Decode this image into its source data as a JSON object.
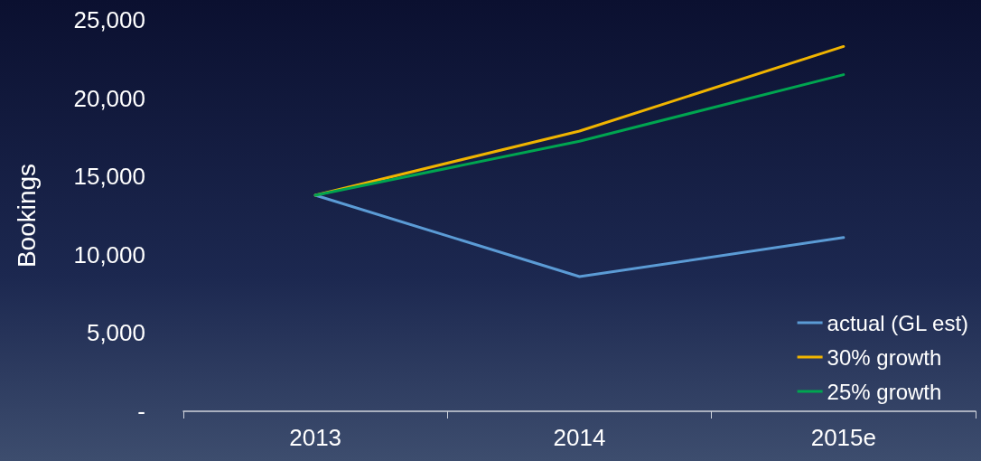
{
  "chart_data": {
    "type": "line",
    "ylabel": "Bookings",
    "categories": [
      "2013",
      "2014",
      "2015e"
    ],
    "series": [
      {
        "name": "actual (GL est)",
        "color": "#5b9bd5",
        "values": [
          13800,
          8600,
          11100
        ]
      },
      {
        "name": "30% growth",
        "color": "#f0b400",
        "values": [
          13800,
          17900,
          23300
        ]
      },
      {
        "name": "25% growth",
        "color": "#00a550",
        "values": [
          13800,
          17250,
          21500
        ]
      }
    ],
    "ylim": [
      0,
      25000
    ],
    "yticks": [
      {
        "value": 0,
        "label": "-"
      },
      {
        "value": 5000,
        "label": "5,000"
      },
      {
        "value": 10000,
        "label": "10,000"
      },
      {
        "value": 15000,
        "label": "15,000"
      },
      {
        "value": 20000,
        "label": "20,000"
      },
      {
        "value": 25000,
        "label": "25,000"
      }
    ],
    "grid": false,
    "legend": "bottom right",
    "marker": "none",
    "line_style": "solid"
  }
}
